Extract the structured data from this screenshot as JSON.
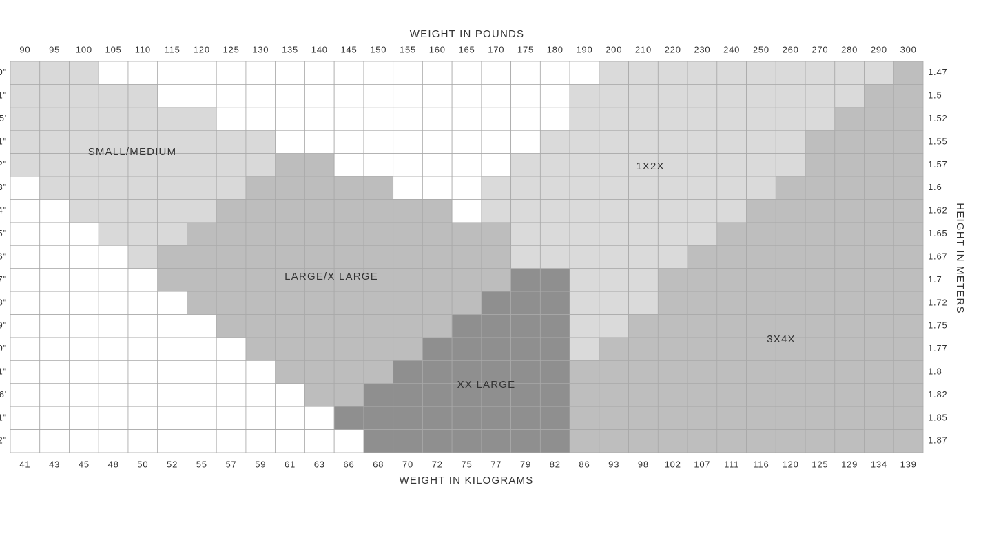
{
  "title_top": "WEIGHT IN POUNDS",
  "title_bottom": "WEIGHT IN KILOGRAMS",
  "title_right": "HEIGHT IN METERS",
  "pounds": [
    90,
    95,
    100,
    105,
    110,
    115,
    120,
    125,
    130,
    135,
    140,
    145,
    150,
    155,
    160,
    165,
    170,
    175,
    180,
    190,
    200,
    210,
    220,
    230,
    240,
    250,
    260,
    270,
    280,
    290,
    300
  ],
  "kilograms": [
    41,
    43,
    45,
    48,
    50,
    52,
    55,
    57,
    59,
    61,
    63,
    66,
    68,
    70,
    72,
    75,
    77,
    79,
    82,
    86,
    93,
    98,
    102,
    107,
    111,
    116,
    120,
    125,
    129,
    134,
    139
  ],
  "meters": [
    1.47,
    1.5,
    1.52,
    1.55,
    1.57,
    1.6,
    1.62,
    1.65,
    1.67,
    1.7,
    1.72,
    1.75,
    1.77,
    1.8,
    1.82,
    1.85,
    1.87
  ],
  "feet_fragments": [
    "0\"",
    "1\"",
    "5'",
    "1\"",
    "2\"",
    "3\"",
    "4\"",
    "5\"",
    "6\"",
    "7\"",
    "8\"",
    "9\"",
    "0\"",
    "1\"",
    "6'",
    "1\"",
    "2\""
  ],
  "zones": [
    {
      "label": "SMALL/MEDIUM",
      "color": "#d9d9d9"
    },
    {
      "label": "LARGE/X LARGE",
      "color": "#bdbdbd"
    },
    {
      "label": "XX LARGE",
      "color": "#8f8f8f"
    },
    {
      "label": "1X2X",
      "color": "#dadada"
    },
    {
      "label": "3X4X",
      "color": "#bebebe"
    }
  ],
  "cells": [
    [
      0,
      0,
      0,
      null,
      null,
      null,
      null,
      null,
      null,
      null,
      null,
      null,
      null,
      null,
      null,
      null,
      null,
      null,
      null,
      null,
      3,
      3,
      3,
      3,
      3,
      3,
      3,
      3,
      3,
      3,
      4
    ],
    [
      0,
      0,
      0,
      0,
      0,
      null,
      null,
      null,
      null,
      null,
      null,
      null,
      null,
      null,
      null,
      null,
      null,
      null,
      null,
      3,
      3,
      3,
      3,
      3,
      3,
      3,
      3,
      3,
      3,
      4,
      4
    ],
    [
      0,
      0,
      0,
      0,
      0,
      0,
      0,
      null,
      null,
      null,
      null,
      null,
      null,
      null,
      null,
      null,
      null,
      null,
      null,
      3,
      3,
      3,
      3,
      3,
      3,
      3,
      3,
      3,
      4,
      4,
      4
    ],
    [
      0,
      0,
      0,
      0,
      0,
      0,
      0,
      0,
      0,
      null,
      null,
      null,
      null,
      null,
      null,
      null,
      null,
      null,
      3,
      3,
      3,
      3,
      3,
      3,
      3,
      3,
      3,
      4,
      4,
      4,
      4
    ],
    [
      0,
      0,
      0,
      0,
      0,
      0,
      0,
      0,
      0,
      1,
      1,
      null,
      null,
      null,
      null,
      null,
      null,
      3,
      3,
      3,
      3,
      3,
      3,
      3,
      3,
      3,
      3,
      4,
      4,
      4,
      4
    ],
    [
      null,
      0,
      0,
      0,
      0,
      0,
      0,
      0,
      1,
      1,
      1,
      1,
      1,
      null,
      null,
      null,
      3,
      3,
      3,
      3,
      3,
      3,
      3,
      3,
      3,
      3,
      4,
      4,
      4,
      4,
      4
    ],
    [
      null,
      null,
      0,
      0,
      0,
      0,
      0,
      1,
      1,
      1,
      1,
      1,
      1,
      1,
      1,
      null,
      3,
      3,
      3,
      3,
      3,
      3,
      3,
      3,
      3,
      4,
      4,
      4,
      4,
      4,
      4
    ],
    [
      null,
      null,
      null,
      0,
      0,
      0,
      1,
      1,
      1,
      1,
      1,
      1,
      1,
      1,
      1,
      1,
      1,
      3,
      3,
      3,
      3,
      3,
      3,
      3,
      4,
      4,
      4,
      4,
      4,
      4,
      4
    ],
    [
      null,
      null,
      null,
      null,
      0,
      1,
      1,
      1,
      1,
      1,
      1,
      1,
      1,
      1,
      1,
      1,
      1,
      3,
      3,
      3,
      3,
      3,
      3,
      4,
      4,
      4,
      4,
      4,
      4,
      4,
      4
    ],
    [
      null,
      null,
      null,
      null,
      null,
      1,
      1,
      1,
      1,
      1,
      1,
      1,
      1,
      1,
      1,
      1,
      1,
      2,
      2,
      3,
      3,
      3,
      4,
      4,
      4,
      4,
      4,
      4,
      4,
      4,
      4
    ],
    [
      null,
      null,
      null,
      null,
      null,
      null,
      1,
      1,
      1,
      1,
      1,
      1,
      1,
      1,
      1,
      1,
      2,
      2,
      2,
      3,
      3,
      3,
      4,
      4,
      4,
      4,
      4,
      4,
      4,
      4,
      4
    ],
    [
      null,
      null,
      null,
      null,
      null,
      null,
      null,
      1,
      1,
      1,
      1,
      1,
      1,
      1,
      1,
      2,
      2,
      2,
      2,
      3,
      3,
      4,
      4,
      4,
      4,
      4,
      4,
      4,
      4,
      4,
      4
    ],
    [
      null,
      null,
      null,
      null,
      null,
      null,
      null,
      null,
      1,
      1,
      1,
      1,
      1,
      1,
      2,
      2,
      2,
      2,
      2,
      3,
      4,
      4,
      4,
      4,
      4,
      4,
      4,
      4,
      4,
      4,
      4
    ],
    [
      null,
      null,
      null,
      null,
      null,
      null,
      null,
      null,
      null,
      1,
      1,
      1,
      1,
      2,
      2,
      2,
      2,
      2,
      2,
      4,
      4,
      4,
      4,
      4,
      4,
      4,
      4,
      4,
      4,
      4,
      4
    ],
    [
      null,
      null,
      null,
      null,
      null,
      null,
      null,
      null,
      null,
      null,
      1,
      1,
      2,
      2,
      2,
      2,
      2,
      2,
      2,
      4,
      4,
      4,
      4,
      4,
      4,
      4,
      4,
      4,
      4,
      4,
      4
    ],
    [
      null,
      null,
      null,
      null,
      null,
      null,
      null,
      null,
      null,
      null,
      null,
      2,
      2,
      2,
      2,
      2,
      2,
      2,
      2,
      4,
      4,
      4,
      4,
      4,
      4,
      4,
      4,
      4,
      4,
      4,
      4
    ],
    [
      null,
      null,
      null,
      null,
      null,
      null,
      null,
      null,
      null,
      null,
      null,
      null,
      2,
      2,
      2,
      2,
      2,
      2,
      2,
      4,
      4,
      4,
      4,
      4,
      4,
      4,
      4,
      4,
      4,
      4,
      4
    ]
  ]
}
